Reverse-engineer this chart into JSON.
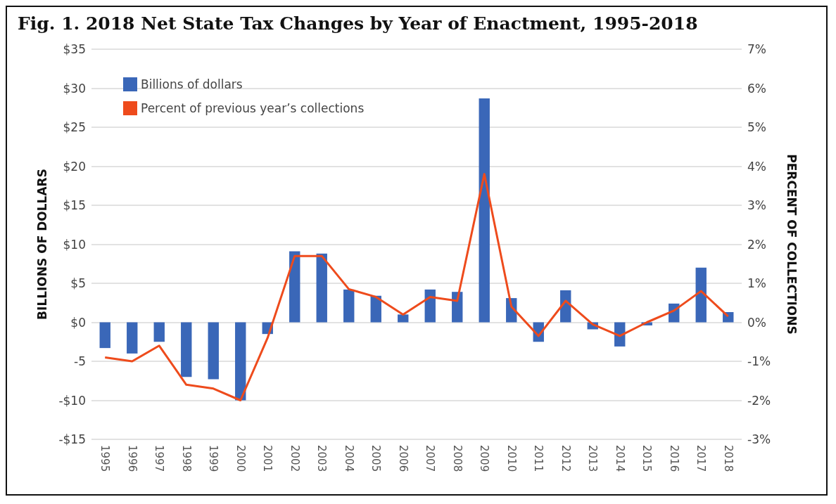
{
  "chart_data": {
    "type": "bar",
    "title": "Fig. 1. 2018 Net State Tax Changes by Year of Enactment, 1995-2018",
    "ylabel": "BILLIONS OF DOLLARS",
    "y2label": "PERCENT OF COLLECTIONS",
    "categories": [
      "1995",
      "1996",
      "1997",
      "1998",
      "1999",
      "2000",
      "2001",
      "2002",
      "2003",
      "2004",
      "2005",
      "2006",
      "2007",
      "2008",
      "2009",
      "2010",
      "2011",
      "2012",
      "2013",
      "2014",
      "2015",
      "2016",
      "2017",
      "2018"
    ],
    "series": [
      {
        "name": "Billions of dollars",
        "color": "#3a67b8",
        "values": [
          -3.3,
          -4,
          -2.5,
          -7,
          -7.3,
          -10,
          -1.5,
          9.1,
          8.8,
          4.2,
          3.4,
          1,
          4.2,
          3.9,
          28.7,
          3.1,
          -2.5,
          4.1,
          -0.9,
          -3.1,
          -0.4,
          2.4,
          7,
          1.3
        ]
      },
      {
        "name": "Percent of previous year’s collections",
        "type": "line",
        "axis": "y2",
        "color": "#ee4b1c",
        "values": [
          -0.9,
          -1,
          -0.6,
          -1.6,
          -1.7,
          -2,
          -0.4,
          1.7,
          1.7,
          0.85,
          0.65,
          0.2,
          0.65,
          0.55,
          3.8,
          0.4,
          -0.35,
          0.55,
          -0.05,
          -0.35,
          0,
          0.3,
          0.8,
          0.15
        ]
      }
    ],
    "ylim": [
      -15,
      35
    ],
    "yticks": [
      {
        "value": -15,
        "label": "-$15"
      },
      {
        "value": -10,
        "label": "-$10"
      },
      {
        "value": -5,
        "label": "-5"
      },
      {
        "value": 0,
        "label": "$0"
      },
      {
        "value": 5,
        "label": "$5"
      },
      {
        "value": 10,
        "label": "$10"
      },
      {
        "value": 15,
        "label": "$15"
      },
      {
        "value": 20,
        "label": "$20"
      },
      {
        "value": 25,
        "label": "$25"
      },
      {
        "value": 30,
        "label": "$30"
      },
      {
        "value": 35,
        "label": "$35"
      }
    ],
    "y2lim": [
      -3,
      7
    ],
    "y2ticks": [
      {
        "value": -3,
        "label": "-3%"
      },
      {
        "value": -2,
        "label": "-2%"
      },
      {
        "value": -1,
        "label": "-1%"
      },
      {
        "value": 0,
        "label": "0%"
      },
      {
        "value": 1,
        "label": "1%"
      },
      {
        "value": 2,
        "label": "2%"
      },
      {
        "value": 3,
        "label": "3%"
      },
      {
        "value": 4,
        "label": "4%"
      },
      {
        "value": 5,
        "label": "5%"
      },
      {
        "value": 6,
        "label": "6%"
      },
      {
        "value": 7,
        "label": "7%"
      }
    ],
    "grid": "y",
    "legend": "top left",
    "marker": "none",
    "line_style": "solid"
  }
}
